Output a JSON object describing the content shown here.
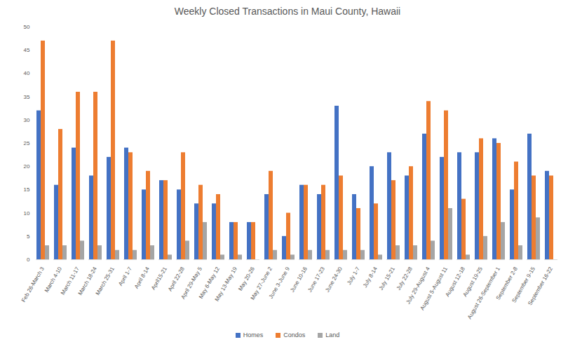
{
  "chart_data": {
    "type": "bar",
    "title": "Weekly Closed Transactions in Maui County, Hawaii",
    "categories": [
      "Feb 26-March 3",
      "March 4-10",
      "March 11-17",
      "March 18-24",
      "March 25-31",
      "April 1-7",
      "April 8-14",
      "April15-21",
      "April 22-28",
      "April 29-May 5",
      "May 6-May 12",
      "May 13-May 19",
      "May 20-26",
      "May 27-June 2",
      "June 3-June 9",
      "June 10-16",
      "June 17-23",
      "June 24-30",
      "July 1-7",
      "July 8-14",
      "July 15-21",
      "July 22-28",
      "July 29-August 4",
      "August 5-August 11",
      "August 12-18",
      "August 19-25",
      "August 26-September 1",
      "September 2-8",
      "September 9-15",
      "September 16-22"
    ],
    "series": [
      {
        "name": "Homes",
        "color": "#4472c4",
        "values": [
          32,
          16,
          24,
          18,
          22,
          24,
          15,
          17,
          15,
          12,
          12,
          8,
          8,
          14,
          5,
          16,
          14,
          33,
          14,
          20,
          23,
          18,
          27,
          22,
          23,
          23,
          26,
          15,
          27,
          19
        ]
      },
      {
        "name": "Condos",
        "color": "#ed7d31",
        "values": [
          47,
          28,
          36,
          36,
          47,
          23,
          19,
          17,
          23,
          16,
          14,
          8,
          8,
          19,
          10,
          16,
          16,
          18,
          11,
          12,
          17,
          20,
          34,
          32,
          13,
          26,
          25,
          21,
          18,
          18
        ]
      },
      {
        "name": "Land",
        "color": "#a5a5a5",
        "values": [
          3,
          3,
          4,
          3,
          2,
          2,
          3,
          1,
          4,
          8,
          1,
          1,
          0,
          2,
          1,
          2,
          2,
          2,
          2,
          1,
          3,
          3,
          4,
          11,
          1,
          5,
          8,
          3,
          9,
          0
        ]
      }
    ],
    "ylim": [
      0,
      50
    ],
    "yticks": [
      0,
      5,
      10,
      15,
      20,
      25,
      30,
      35,
      40,
      45,
      50
    ],
    "grid": false,
    "legend": "bottom"
  }
}
